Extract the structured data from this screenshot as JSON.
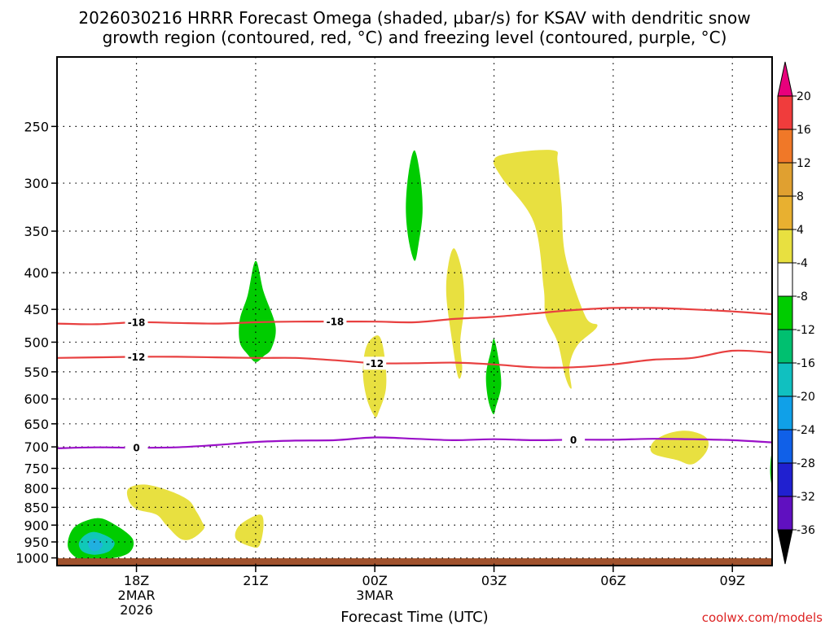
{
  "chart_data": {
    "type": "contour",
    "title_line1": "2026030216 HRRR Forecast Omega (shaded, µbar/s) for KSAV with dendritic snow",
    "title_line2": "growth region (contoured, red, °C) and freezing level (contoured, purple, °C)",
    "xlabel": "Forecast Time (UTC)",
    "credit": "coolwx.com/models",
    "x_range_hours": [
      16,
      34
    ],
    "y_axis": {
      "type": "pressure_hPa",
      "range": [
        1025,
        200
      ],
      "scale": "log",
      "ticks": [
        250,
        300,
        350,
        400,
        450,
        500,
        550,
        600,
        650,
        700,
        750,
        800,
        850,
        900,
        950,
        1000
      ]
    },
    "x_ticks": [
      {
        "hour": 18,
        "label": "18Z",
        "date": "2MAR",
        "year": "2026"
      },
      {
        "hour": 21,
        "label": "21Z",
        "date": "",
        "year": ""
      },
      {
        "hour": 24,
        "label": "00Z",
        "date": "3MAR",
        "year": ""
      },
      {
        "hour": 27,
        "label": "03Z",
        "date": "",
        "year": ""
      },
      {
        "hour": 30,
        "label": "06Z",
        "date": "",
        "year": ""
      },
      {
        "hour": 33,
        "label": "09Z",
        "date": "",
        "year": ""
      }
    ],
    "colorbar": {
      "levels": [
        20,
        16,
        12,
        8,
        4,
        -4,
        -8,
        -12,
        -16,
        -20,
        -24,
        -28,
        -32,
        -36
      ],
      "colors": [
        "#e8007c",
        "#f03c3c",
        "#f07828",
        "#e0a030",
        "#e8b030",
        "#e8e040",
        "#ffffff",
        "#00cc00",
        "#00c070",
        "#10c0c0",
        "#10a0e8",
        "#1060e8",
        "#2020d0",
        "#6010c0",
        "#a010c0",
        "#a0a0a0",
        "#000000"
      ]
    },
    "contours": [
      {
        "name": "-18",
        "color": "#e84040",
        "label": "-18",
        "points": [
          [
            16,
            471
          ],
          [
            17,
            472
          ],
          [
            18,
            469
          ],
          [
            19,
            470
          ],
          [
            20,
            471
          ],
          [
            21,
            469
          ],
          [
            22,
            468
          ],
          [
            23,
            468
          ],
          [
            24,
            468
          ],
          [
            25,
            469
          ],
          [
            26,
            464
          ],
          [
            27,
            461
          ],
          [
            28,
            456
          ],
          [
            29,
            451
          ],
          [
            30,
            448
          ],
          [
            31,
            448
          ],
          [
            32,
            450
          ],
          [
            33,
            453
          ],
          [
            34,
            457
          ]
        ],
        "label_hours": [
          18,
          23
        ]
      },
      {
        "name": "-12",
        "color": "#e84040",
        "label": "-12",
        "points": [
          [
            16,
            526
          ],
          [
            17,
            525
          ],
          [
            18,
            524
          ],
          [
            19,
            524
          ],
          [
            20,
            525
          ],
          [
            21,
            526
          ],
          [
            22,
            526
          ],
          [
            23,
            530
          ],
          [
            24,
            535
          ],
          [
            25,
            535
          ],
          [
            26,
            534
          ],
          [
            27,
            537
          ],
          [
            28,
            542
          ],
          [
            29,
            542
          ],
          [
            30,
            537
          ],
          [
            31,
            529
          ],
          [
            32,
            526
          ],
          [
            33,
            514
          ],
          [
            34,
            517
          ]
        ],
        "label_hours": [
          18,
          24
        ]
      },
      {
        "name": "0",
        "color": "#9a10c8",
        "label": "0",
        "points": [
          [
            16,
            703
          ],
          [
            17,
            701
          ],
          [
            18,
            702
          ],
          [
            19,
            701
          ],
          [
            20,
            696
          ],
          [
            21,
            689
          ],
          [
            22,
            686
          ],
          [
            23,
            685
          ],
          [
            24,
            679
          ],
          [
            25,
            682
          ],
          [
            26,
            685
          ],
          [
            27,
            683
          ],
          [
            28,
            685
          ],
          [
            29,
            684
          ],
          [
            30,
            684
          ],
          [
            31,
            682
          ],
          [
            32,
            683
          ],
          [
            33,
            685
          ],
          [
            34,
            690
          ]
        ],
        "label_hours": [
          18,
          29
        ]
      }
    ],
    "shaded_regions": [
      {
        "name": "green-cell-21z",
        "omega_level": -8,
        "color": "#00cc00",
        "points": [
          [
            21.0,
            385
          ],
          [
            21.2,
            425
          ],
          [
            21.5,
            475
          ],
          [
            21.4,
            510
          ],
          [
            21.2,
            523
          ],
          [
            21.0,
            533
          ],
          [
            20.8,
            520
          ],
          [
            20.6,
            500
          ],
          [
            20.6,
            465
          ],
          [
            20.8,
            430
          ]
        ]
      },
      {
        "name": "green-cell-01z",
        "omega_level": -8,
        "color": "#00cc00",
        "points": [
          [
            25.0,
            270
          ],
          [
            25.15,
            295
          ],
          [
            25.2,
            330
          ],
          [
            25.1,
            365
          ],
          [
            25.0,
            385
          ],
          [
            24.85,
            360
          ],
          [
            24.78,
            325
          ],
          [
            24.85,
            290
          ]
        ]
      },
      {
        "name": "green-cell-03z",
        "omega_level": -8,
        "color": "#00cc00",
        "points": [
          [
            27.0,
            495
          ],
          [
            27.12,
            530
          ],
          [
            27.18,
            575
          ],
          [
            27.05,
            615
          ],
          [
            26.98,
            630
          ],
          [
            26.85,
            600
          ],
          [
            26.8,
            555
          ],
          [
            26.92,
            515
          ]
        ]
      },
      {
        "name": "green-edge-10z",
        "omega_level": -8,
        "color": "#00cc00",
        "points": [
          [
            33.97,
            725
          ],
          [
            34.0,
            720
          ],
          [
            34.0,
            790
          ],
          [
            33.97,
            780
          ],
          [
            33.95,
            755
          ]
        ]
      },
      {
        "name": "green-cell-17z",
        "omega_level": -8,
        "color": "#00cc00",
        "points": [
          [
            17.0,
            880
          ],
          [
            17.4,
            895
          ],
          [
            17.9,
            940
          ],
          [
            17.8,
            985
          ],
          [
            17.2,
            1005
          ],
          [
            16.6,
            1005
          ],
          [
            16.3,
            975
          ],
          [
            16.3,
            935
          ],
          [
            16.5,
            900
          ]
        ]
      },
      {
        "name": "teal-core-17z",
        "omega_level": -12,
        "color": "#10c8b8",
        "points": [
          [
            16.95,
            920
          ],
          [
            17.3,
            935
          ],
          [
            17.45,
            955
          ],
          [
            17.3,
            980
          ],
          [
            16.95,
            990
          ],
          [
            16.65,
            980
          ],
          [
            16.55,
            955
          ],
          [
            16.7,
            930
          ]
        ]
      },
      {
        "name": "cyan-core-17z",
        "omega_level": -16,
        "color": "#20b0e0",
        "points": [
          [
            16.95,
            940
          ],
          [
            17.1,
            950
          ],
          [
            17.15,
            960
          ],
          [
            17.05,
            975
          ],
          [
            16.9,
            978
          ],
          [
            16.8,
            965
          ],
          [
            16.8,
            950
          ]
        ]
      },
      {
        "name": "yellow-cell-00z",
        "omega_level": 4,
        "color": "#e8e040",
        "points": [
          [
            24.1,
            490
          ],
          [
            24.25,
            525
          ],
          [
            24.28,
            580
          ],
          [
            24.1,
            625
          ],
          [
            24.0,
            635
          ],
          [
            23.8,
            600
          ],
          [
            23.7,
            550
          ],
          [
            23.8,
            505
          ]
        ]
      },
      {
        "name": "yellow-cell-02z",
        "omega_level": 4,
        "color": "#e8e040",
        "points": [
          [
            26.0,
            370
          ],
          [
            26.2,
            400
          ],
          [
            26.25,
            445
          ],
          [
            26.15,
            500
          ],
          [
            26.2,
            545
          ],
          [
            26.1,
            560
          ],
          [
            25.95,
            500
          ],
          [
            25.8,
            430
          ],
          [
            25.85,
            390
          ]
        ]
      },
      {
        "name": "yellow-cell-04z",
        "omega_level": 4,
        "color": "#e8e040",
        "points": [
          [
            27.0,
            278
          ],
          [
            27.5,
            272
          ],
          [
            28.5,
            270
          ],
          [
            28.6,
            280
          ],
          [
            28.7,
            320
          ],
          [
            28.8,
            380
          ],
          [
            29.3,
            460
          ],
          [
            29.6,
            475
          ],
          [
            29.1,
            505
          ],
          [
            28.9,
            540
          ],
          [
            28.95,
            580
          ],
          [
            28.8,
            560
          ],
          [
            28.6,
            500
          ],
          [
            28.3,
            460
          ],
          [
            28.25,
            420
          ],
          [
            28.0,
            340
          ],
          [
            27.2,
            295
          ]
        ]
      },
      {
        "name": "yellow-cell-06z",
        "omega_level": 4,
        "color": "#e8e040",
        "points": [
          [
            31.0,
            690
          ],
          [
            31.4,
            670
          ],
          [
            31.9,
            665
          ],
          [
            32.35,
            680
          ],
          [
            32.35,
            710
          ],
          [
            32.0,
            740
          ],
          [
            31.6,
            730
          ],
          [
            31.0,
            715
          ]
        ]
      },
      {
        "name": "yellow-cell-19z",
        "omega_level": 4,
        "color": "#e8e040",
        "points": [
          [
            17.8,
            800
          ],
          [
            18.2,
            790
          ],
          [
            18.8,
            805
          ],
          [
            19.3,
            830
          ],
          [
            19.5,
            860
          ],
          [
            19.65,
            890
          ],
          [
            19.7,
            910
          ],
          [
            19.4,
            940
          ],
          [
            19.1,
            940
          ],
          [
            18.75,
            900
          ],
          [
            18.5,
            870
          ],
          [
            18.0,
            855
          ],
          [
            17.8,
            830
          ]
        ]
      },
      {
        "name": "yellow-cell-21z",
        "omega_level": 4,
        "color": "#e8e040",
        "points": [
          [
            20.6,
            900
          ],
          [
            21.1,
            870
          ],
          [
            21.2,
            900
          ],
          [
            21.1,
            960
          ],
          [
            20.9,
            965
          ],
          [
            20.5,
            940
          ]
        ]
      }
    ]
  }
}
